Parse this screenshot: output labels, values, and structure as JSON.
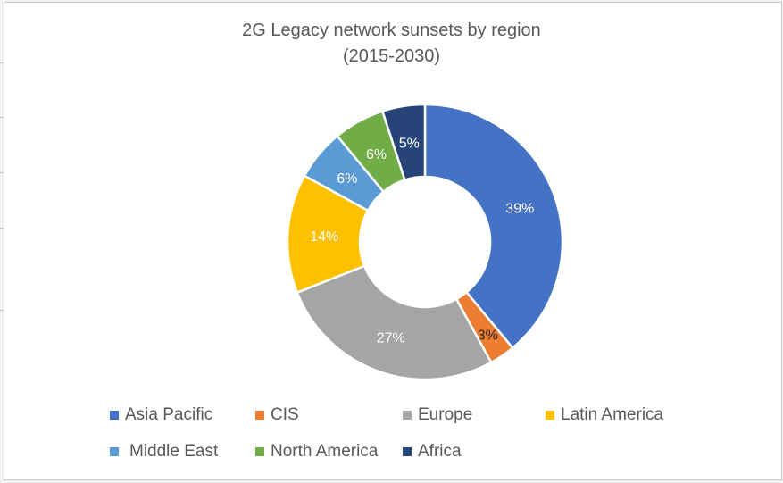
{
  "chart_data": {
    "type": "pie",
    "variant": "donut",
    "title": "2G Legacy network sunsets by region",
    "subtitle": "(2015-2030)",
    "categories": [
      "Asia Pacific",
      "CIS",
      "Europe",
      "Latin America",
      "Middle East",
      "North America",
      "Africa"
    ],
    "values": [
      39,
      3,
      27,
      14,
      6,
      6,
      5
    ],
    "data_labels": [
      "39%",
      "3%",
      "27%",
      "14%",
      "6%",
      "6%",
      "5%"
    ],
    "colors": [
      "#4472c4",
      "#ed7d31",
      "#a5a5a5",
      "#ffc000",
      "#5b9bd5",
      "#70ad47",
      "#264478"
    ],
    "legend_placement": "bottom"
  }
}
